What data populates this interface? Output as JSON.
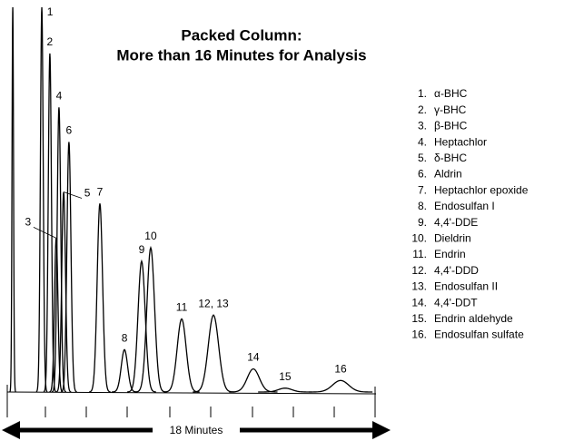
{
  "chart_data": {
    "type": "chromatogram",
    "title": "Packed Column:",
    "subtitle": "More than 16 Minutes for Analysis",
    "xlabel": "18 Minutes",
    "xlim": [
      0,
      18
    ],
    "ylim": [
      0,
      100
    ],
    "color": "#000000",
    "peaks": [
      {
        "label": null,
        "time": 0.26,
        "height": 100
      },
      {
        "label": "1",
        "time": 1.63,
        "height": 100
      },
      {
        "label": "2",
        "time": 2.01,
        "height": 88
      },
      {
        "label": "3",
        "time": 2.31,
        "height": 40
      },
      {
        "label": "4",
        "time": 2.44,
        "height": 74
      },
      {
        "label": "5",
        "time": 2.66,
        "height": 52
      },
      {
        "label": "6",
        "time": 2.91,
        "height": 65
      },
      {
        "label": "7",
        "time": 4.37,
        "height": 49
      },
      {
        "label": "8",
        "time": 5.53,
        "height": 11
      },
      {
        "label": "9",
        "time": 6.34,
        "height": 34
      },
      {
        "label": "10",
        "time": 6.77,
        "height": 37.5
      },
      {
        "label": "11",
        "time": 8.23,
        "height": 19
      },
      {
        "label": "12, 13",
        "time": 9.73,
        "height": 20
      },
      {
        "label": "14",
        "time": 11.61,
        "height": 6
      },
      {
        "label": "15",
        "time": 13.11,
        "height": 1
      },
      {
        "label": "16",
        "time": 15.73,
        "height": 3
      }
    ],
    "legend": [
      {
        "num": "1.",
        "name": "α-BHC"
      },
      {
        "num": "2.",
        "name": "γ-BHC"
      },
      {
        "num": "3.",
        "name": "β-BHC"
      },
      {
        "num": "4.",
        "name": "Heptachlor"
      },
      {
        "num": "5.",
        "name": "δ-BHC"
      },
      {
        "num": "6.",
        "name": "Aldrin"
      },
      {
        "num": "7.",
        "name": "Heptachlor epoxide"
      },
      {
        "num": "8.",
        "name": "Endosulfan I"
      },
      {
        "num": "9.",
        "name": "4,4'-DDE"
      },
      {
        "num": "10.",
        "name": "Dieldrin"
      },
      {
        "num": "11.",
        "name": "Endrin"
      },
      {
        "num": "12.",
        "name": "4,4'-DDD"
      },
      {
        "num": "13.",
        "name": "Endosulfan II"
      },
      {
        "num": "14.",
        "name": "4,4'-DDT"
      },
      {
        "num": "15.",
        "name": "Endrin aldehyde"
      },
      {
        "num": "16.",
        "name": "Endosulfan sulfate"
      }
    ]
  }
}
